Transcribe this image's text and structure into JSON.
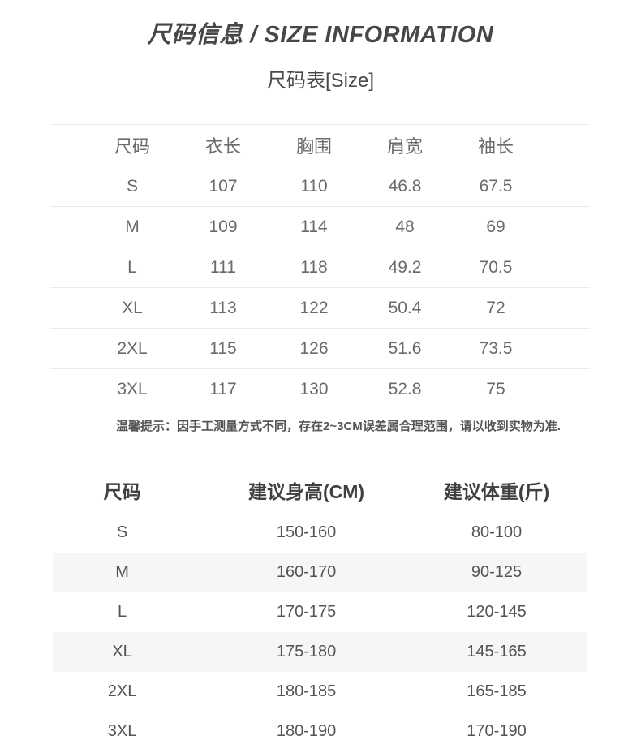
{
  "header": {
    "title": "尺码信息 / SIZE INFORMATION",
    "subtitle": "尺码表[Size]"
  },
  "size_table": {
    "columns": [
      "尺码",
      "衣长",
      "胸围",
      "肩宽",
      "袖长"
    ],
    "rows": [
      [
        "S",
        "107",
        "110",
        "46.8",
        "67.5"
      ],
      [
        "M",
        "109",
        "114",
        "48",
        "69"
      ],
      [
        "L",
        "111",
        "118",
        "49.2",
        "70.5"
      ],
      [
        "XL",
        "113",
        "122",
        "50.4",
        "72"
      ],
      [
        "2XL",
        "115",
        "126",
        "51.6",
        "73.5"
      ],
      [
        "3XL",
        "117",
        "130",
        "52.8",
        "75"
      ]
    ]
  },
  "notice": "温馨提示：因手工测量方式不同，存在2~3CM误差属合理范围，请以收到实物为准.",
  "fit_table": {
    "columns": [
      "尺码",
      "建议身高(CM)",
      "建议体重(斤)"
    ],
    "rows": [
      [
        "S",
        "150-160",
        "80-100"
      ],
      [
        "M",
        "160-170",
        "90-125"
      ],
      [
        "L",
        "170-175",
        "120-145"
      ],
      [
        "XL",
        "175-180",
        "145-165"
      ],
      [
        "2XL",
        "180-185",
        "165-185"
      ],
      [
        "3XL",
        "180-190",
        "170-190"
      ]
    ]
  },
  "colors": {
    "title_text": "#474747",
    "table_text": "#6a6a6a",
    "divider_line": "#eaeaea",
    "row_stripe": "#f6f6f6",
    "notice_text": "#555555",
    "fit_header_text": "#404040"
  }
}
